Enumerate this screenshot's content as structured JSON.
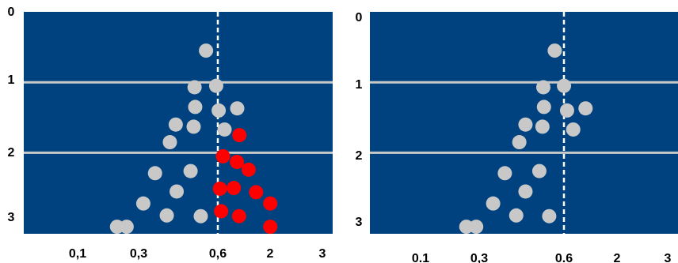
{
  "colors": {
    "panel_background": "#00427F",
    "gridline": "#C9C9C9",
    "dashed_line": "#FFFFFF",
    "point_gray": "#C8C8C8",
    "point_red": "#FF0000"
  },
  "chart_data": [
    {
      "type": "scatter",
      "xlabel": "",
      "ylabel": "",
      "x_tick_labels": [
        "0,1",
        "0,3",
        "0,6",
        "2",
        "3"
      ],
      "y_tick_labels": [
        "0",
        "1",
        "2",
        "3"
      ],
      "y_inverted": true,
      "ylim": [
        0,
        3.15
      ],
      "reference_line_x": "0,6",
      "horizontal_gridlines_y": [
        1,
        2
      ],
      "series": [
        {
          "color": "#C8C8C8",
          "points": [
            {
              "x": 0.59,
              "y": 0.55
            },
            {
              "x": 0.553,
              "y": 1.07
            },
            {
              "x": 0.623,
              "y": 1.05
            },
            {
              "x": 0.555,
              "y": 1.35
            },
            {
              "x": 0.631,
              "y": 1.4
            },
            {
              "x": 0.691,
              "y": 1.37
            },
            {
              "x": 0.492,
              "y": 1.6
            },
            {
              "x": 0.55,
              "y": 1.63
            },
            {
              "x": 0.65,
              "y": 1.67
            },
            {
              "x": 0.473,
              "y": 1.85
            },
            {
              "x": 0.425,
              "y": 2.29
            },
            {
              "x": 0.54,
              "y": 2.26
            },
            {
              "x": 0.495,
              "y": 2.55
            },
            {
              "x": 0.387,
              "y": 2.72
            },
            {
              "x": 0.463,
              "y": 2.89
            },
            {
              "x": 0.573,
              "y": 2.9
            },
            {
              "x": 0.302,
              "y": 3.05
            },
            {
              "x": 0.333,
              "y": 3.05
            }
          ]
        },
        {
          "color": "#FF0000",
          "points": [
            {
              "x": 0.698,
              "y": 1.75
            },
            {
              "x": 0.645,
              "y": 2.05
            },
            {
              "x": 0.69,
              "y": 2.13
            },
            {
              "x": 0.728,
              "y": 2.24
            },
            {
              "x": 0.635,
              "y": 2.51
            },
            {
              "x": 0.68,
              "y": 2.5
            },
            {
              "x": 0.752,
              "y": 2.56
            },
            {
              "x": 0.639,
              "y": 2.83
            },
            {
              "x": 0.697,
              "y": 2.9
            },
            {
              "x": 0.798,
              "y": 2.72
            },
            {
              "x": 0.798,
              "y": 3.05
            }
          ]
        }
      ]
    },
    {
      "type": "scatter",
      "xlabel": "",
      "ylabel": "",
      "x_tick_labels": [
        "0.1",
        "0,3",
        "0.6",
        "2",
        "3"
      ],
      "y_tick_labels": [
        "0",
        "1",
        "2",
        "3"
      ],
      "y_inverted": true,
      "ylim": [
        0,
        3.15
      ],
      "reference_line_x": "0.6",
      "horizontal_gridlines_y": [
        1,
        2
      ],
      "series": [
        {
          "color": "#C8C8C8",
          "points": [
            {
              "x": 0.6,
              "y": 0.55
            },
            {
              "x": 0.563,
              "y": 1.07
            },
            {
              "x": 0.63,
              "y": 1.05
            },
            {
              "x": 0.565,
              "y": 1.35
            },
            {
              "x": 0.64,
              "y": 1.4
            },
            {
              "x": 0.7,
              "y": 1.37
            },
            {
              "x": 0.505,
              "y": 1.6
            },
            {
              "x": 0.56,
              "y": 1.63
            },
            {
              "x": 0.66,
              "y": 1.67
            },
            {
              "x": 0.485,
              "y": 1.85
            },
            {
              "x": 0.438,
              "y": 2.29
            },
            {
              "x": 0.55,
              "y": 2.26
            },
            {
              "x": 0.505,
              "y": 2.55
            },
            {
              "x": 0.4,
              "y": 2.72
            },
            {
              "x": 0.475,
              "y": 2.89
            },
            {
              "x": 0.582,
              "y": 2.9
            },
            {
              "x": 0.313,
              "y": 3.05
            },
            {
              "x": 0.345,
              "y": 3.05
            }
          ]
        }
      ]
    }
  ]
}
